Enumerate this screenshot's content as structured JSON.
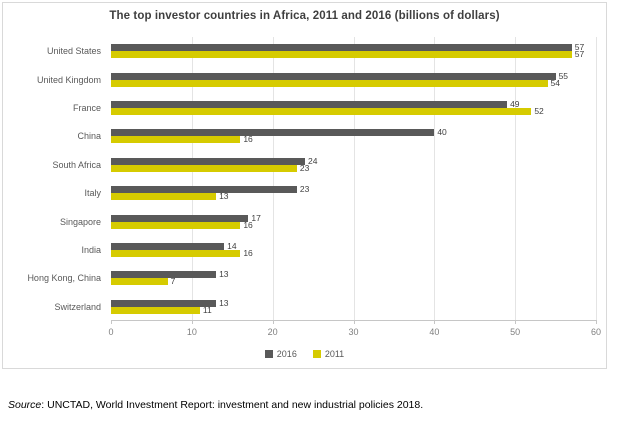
{
  "figure": {
    "title": "The top investor countries in Africa, 2011 and 2016 (billions of dollars)"
  },
  "legend": {
    "items": [
      {
        "label": "2016",
        "color": "#595959"
      },
      {
        "label": "2011",
        "color": "#d6cb00"
      }
    ]
  },
  "source": {
    "prefix": "Source",
    "text": ": UNCTAD, World Investment Report: investment and new industrial policies 2018."
  },
  "chart_data": {
    "type": "bar",
    "orientation": "horizontal",
    "title": "The top investor countries in Africa, 2011 and 2016 (billions of dollars)",
    "categories": [
      "United States",
      "United Kingdom",
      "France",
      "China",
      "South Africa",
      "Italy",
      "Singapore",
      "India",
      "Hong Kong, China",
      "Switzerland"
    ],
    "series": [
      {
        "name": "2016",
        "color": "#595959",
        "values": [
          57,
          55,
          49,
          40,
          24,
          23,
          17,
          14,
          13,
          13
        ]
      },
      {
        "name": "2011",
        "color": "#d6cb00",
        "values": [
          57,
          54,
          52,
          16,
          23,
          13,
          16,
          16,
          7,
          11
        ]
      }
    ],
    "xlim": [
      0,
      60
    ],
    "xticks": [
      0,
      10,
      20,
      30,
      40,
      50,
      60
    ],
    "grid": true,
    "value_labels": true,
    "legend_position": "bottom",
    "colors": {
      "grid": "#e4e4e4",
      "axis": "#c6c6c6",
      "value_label": "#404040",
      "tick_label": "#7f7f7f"
    }
  }
}
